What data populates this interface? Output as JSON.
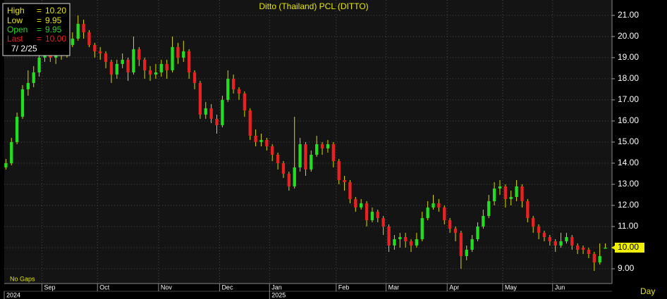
{
  "chart_data": {
    "type": "candlestick",
    "title": "Ditto (Thailand) PCL (DITTO)",
    "info": {
      "high_label": "High",
      "high_value": "10.20",
      "low_label": "Low",
      "low_value": "9.95",
      "open_label": "Open",
      "open_value": "9.95",
      "last_label": "Last",
      "last_value": "10.00",
      "equals": "=",
      "date": "7/ 2/25"
    },
    "note": "No Gaps",
    "period": "Day",
    "last_marker": {
      "value": 10,
      "label": "10.00"
    },
    "colors": {
      "up": "#22dd22",
      "down": "#e82222",
      "wick": "#d8d800"
    },
    "grid": true,
    "open": [
      13.8,
      14.0,
      15.0,
      16.2,
      17.5,
      17.8,
      18.3,
      19.0,
      19.3,
      19.0,
      19.2,
      19.1,
      19.6,
      19.9,
      20.6,
      20.2,
      19.6,
      19.3,
      19.2,
      18.8,
      18.2,
      18.7,
      18.9,
      18.3,
      19.4,
      18.9,
      18.4,
      18.2,
      18.3,
      18.7,
      18.4,
      19.5,
      19.0,
      19.3,
      18.3,
      17.8,
      16.3,
      16.6,
      16.1,
      15.8,
      17.0,
      18.0,
      17.5,
      17.3,
      16.5,
      15.3,
      15.0,
      15.1,
      14.8,
      14.4,
      14.0,
      13.5,
      12.9,
      13.8,
      14.9,
      13.7,
      14.4,
      14.9,
      14.7,
      14.9,
      14.1,
      13.2,
      13.1,
      12.3,
      11.9,
      12.1,
      11.3,
      11.7,
      11.4,
      11.0,
      10.1,
      10.4,
      10.5,
      10.3,
      10.1,
      10.4,
      11.4,
      11.9,
      12.1,
      11.9,
      11.3,
      10.9,
      10.7,
      9.6,
      9.9,
      10.4,
      11.0,
      11.5,
      12.2,
      12.8,
      12.9,
      12.3,
      12.4,
      12.9,
      12.2,
      11.4,
      11.0,
      10.7,
      10.5,
      10.3,
      10.1,
      10.3,
      10.5,
      10.1,
      10.0,
      9.9,
      9.7,
      9.3,
      9.95
    ],
    "high": [
      14.2,
      15.2,
      16.4,
      17.7,
      18.4,
      18.6,
      19.3,
      19.6,
      19.5,
      19.4,
      19.5,
      19.9,
      20.2,
      21.0,
      20.8,
      20.3,
      19.7,
      19.5,
      19.3,
      18.9,
      18.9,
      19.2,
      19.0,
      20.0,
      19.5,
      19.0,
      18.6,
      18.7,
      18.9,
      18.9,
      20.0,
      19.7,
      19.8,
      19.4,
      18.4,
      17.9,
      16.9,
      16.8,
      16.3,
      17.2,
      18.4,
      18.2,
      17.6,
      17.4,
      16.6,
      15.6,
      15.4,
      15.2,
      14.9,
      14.5,
      14.1,
      13.6,
      16.2,
      15.2,
      15.0,
      14.6,
      15.3,
      15.0,
      15.1,
      15.0,
      14.2,
      13.4,
      13.2,
      12.4,
      12.3,
      12.2,
      11.9,
      11.8,
      11.5,
      11.1,
      10.6,
      10.7,
      10.7,
      10.4,
      10.7,
      11.7,
      12.2,
      12.5,
      12.3,
      12.0,
      11.4,
      11.0,
      10.8,
      10.1,
      10.6,
      11.2,
      11.8,
      12.5,
      13.1,
      13.2,
      13.0,
      12.7,
      13.2,
      13.0,
      12.3,
      11.5,
      11.1,
      10.8,
      10.6,
      10.4,
      10.7,
      10.7,
      10.6,
      10.2,
      10.1,
      10.0,
      9.8,
      10.2,
      10.2
    ],
    "low": [
      13.7,
      13.9,
      14.9,
      16.1,
      17.2,
      17.6,
      18.1,
      18.8,
      18.8,
      18.7,
      18.9,
      19.0,
      19.5,
      19.8,
      19.9,
      19.5,
      19.0,
      18.9,
      18.5,
      17.8,
      18.0,
      18.5,
      17.9,
      18.2,
      18.6,
      18.0,
      17.9,
      18.0,
      18.1,
      18.0,
      18.3,
      18.7,
      18.8,
      18.0,
      17.5,
      16.1,
      16.1,
      15.9,
      15.4,
      15.7,
      16.9,
      17.3,
      17.0,
      16.2,
      15.1,
      14.8,
      14.8,
      14.6,
      14.1,
      13.7,
      13.3,
      12.7,
      12.8,
      13.6,
      13.4,
      13.6,
      14.3,
      14.4,
      14.5,
      13.8,
      13.0,
      12.7,
      12.1,
      11.7,
      11.8,
      11.0,
      11.2,
      11.2,
      10.6,
      9.8,
      9.9,
      10.0,
      10.0,
      9.8,
      10.0,
      10.3,
      11.3,
      11.8,
      11.7,
      11.1,
      10.7,
      10.3,
      9.0,
      9.4,
      9.8,
      10.3,
      10.9,
      11.4,
      12.0,
      12.5,
      11.9,
      12.0,
      12.2,
      11.9,
      11.2,
      10.7,
      10.4,
      10.3,
      10.1,
      9.8,
      10.0,
      10.2,
      9.9,
      9.7,
      9.7,
      9.5,
      8.9,
      9.2,
      9.95
    ],
    "close": [
      14.0,
      15.0,
      16.2,
      17.5,
      17.8,
      18.3,
      19.0,
      19.3,
      19.0,
      19.2,
      19.1,
      19.6,
      19.9,
      20.6,
      20.2,
      19.6,
      19.3,
      19.2,
      18.8,
      18.2,
      18.7,
      18.9,
      18.3,
      19.4,
      18.9,
      18.4,
      18.2,
      18.3,
      18.7,
      18.4,
      19.5,
      19.0,
      19.3,
      18.3,
      17.8,
      16.3,
      16.6,
      16.1,
      15.8,
      17.0,
      18.0,
      17.5,
      17.3,
      16.5,
      15.3,
      15.0,
      15.1,
      14.8,
      14.4,
      14.0,
      13.5,
      12.9,
      13.8,
      14.9,
      13.7,
      14.4,
      14.9,
      14.7,
      14.9,
      14.1,
      13.2,
      13.1,
      12.3,
      11.9,
      12.1,
      11.3,
      11.7,
      11.4,
      11.0,
      10.1,
      10.4,
      10.5,
      10.3,
      10.1,
      10.4,
      11.4,
      11.9,
      12.1,
      11.9,
      11.3,
      10.9,
      10.7,
      9.6,
      9.9,
      10.4,
      11.0,
      11.5,
      12.2,
      12.8,
      12.9,
      12.3,
      12.4,
      12.9,
      12.2,
      11.4,
      11.0,
      10.7,
      10.5,
      10.3,
      10.1,
      10.3,
      10.5,
      10.1,
      9.9,
      9.9,
      9.7,
      9.3,
      9.6,
      10.0
    ],
    "xlim": [
      -0.3,
      109.2
    ],
    "xticks": [
      {
        "value": 7,
        "label": "Sep"
      },
      {
        "value": 17,
        "label": "Oct"
      },
      {
        "value": 28,
        "label": "Nov"
      },
      {
        "value": 39,
        "label": "Dec"
      },
      {
        "value": 48,
        "label": "Jan"
      },
      {
        "value": 60,
        "label": "Feb"
      },
      {
        "value": 69,
        "label": "Mar"
      },
      {
        "value": 80,
        "label": "Apr"
      },
      {
        "value": 90,
        "label": "May"
      },
      {
        "value": 99,
        "label": "Jun"
      }
    ],
    "year_ticks": [
      {
        "value": 0,
        "label": "2024"
      },
      {
        "value": 48,
        "label": "2025"
      }
    ],
    "ylim": [
      8.3,
      21.73
    ],
    "yticks": [
      {
        "value": 9,
        "label": "9.00"
      },
      {
        "value": 10,
        "label": "10.00"
      },
      {
        "value": 11,
        "label": "11.00"
      },
      {
        "value": 12,
        "label": "12.00"
      },
      {
        "value": 13,
        "label": "13.00"
      },
      {
        "value": 14,
        "label": "14.00"
      },
      {
        "value": 15,
        "label": "15.00"
      },
      {
        "value": 16,
        "label": "16.00"
      },
      {
        "value": 17,
        "label": "17.00"
      },
      {
        "value": 18,
        "label": "18.00"
      },
      {
        "value": 19,
        "label": "19.00"
      },
      {
        "value": 20,
        "label": "20.00"
      },
      {
        "value": 21,
        "label": "21.00"
      }
    ]
  }
}
